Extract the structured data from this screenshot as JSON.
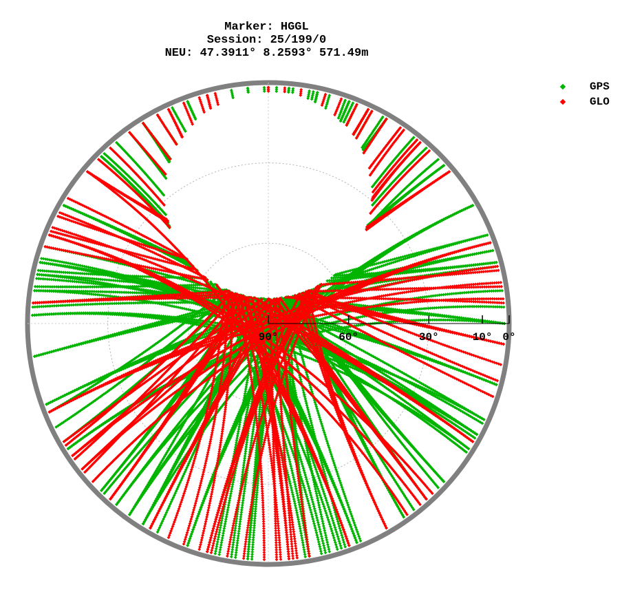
{
  "chart_data": {
    "type": "scatter",
    "projection": "polar-skyplot",
    "title_lines": [
      "Marker: HGGL",
      "Session: 25/199/0",
      "NEU: 47.3911° 8.2593° 571.49m"
    ],
    "elevation_ticks": [
      {
        "elevation": 90,
        "label": "90°"
      },
      {
        "elevation": 60,
        "label": "60°"
      },
      {
        "elevation": 30,
        "label": "30°"
      },
      {
        "elevation": 10,
        "label": "10°"
      },
      {
        "elevation": 0,
        "label": "0°"
      }
    ],
    "rlim": [
      90,
      0
    ],
    "grid": true,
    "legend_position": "top-right",
    "north_hole_azimuth_deg": 0,
    "north_hole_elevation_deg": 42,
    "series": [
      {
        "name": "GPS",
        "color": "#00b400",
        "tracks": [
          {
            "start_az": 300,
            "az_offset": -6
          },
          {
            "start_az": 328,
            "az_offset": 14
          },
          {
            "start_az": 355,
            "az_offset": -18
          },
          {
            "start_az": 20,
            "az_offset": 8
          },
          {
            "start_az": 48,
            "az_offset": -12
          },
          {
            "start_az": 75,
            "az_offset": 20
          },
          {
            "start_az": 105,
            "az_offset": -4
          },
          {
            "start_az": 132,
            "az_offset": 16
          },
          {
            "start_az": 158,
            "az_offset": -22
          },
          {
            "start_az": 185,
            "az_offset": 6
          },
          {
            "start_az": 212,
            "az_offset": -10
          },
          {
            "start_az": 238,
            "az_offset": 24
          },
          {
            "start_az": 262,
            "az_offset": -14
          },
          {
            "start_az": 285,
            "az_offset": 10
          },
          {
            "start_az": 315,
            "az_offset": 28
          },
          {
            "start_az": 340,
            "az_offset": -26
          },
          {
            "start_az": 30,
            "az_offset": 30
          },
          {
            "start_az": 60,
            "az_offset": -28
          },
          {
            "start_az": 90,
            "az_offset": 4
          },
          {
            "start_az": 118,
            "az_offset": -20
          },
          {
            "start_az": 145,
            "az_offset": 26
          },
          {
            "start_az": 200,
            "az_offset": 18
          },
          {
            "start_az": 250,
            "az_offset": -2
          },
          {
            "start_az": 5,
            "az_offset": 0
          },
          {
            "start_az": 170,
            "az_offset": 12
          },
          {
            "start_az": 225,
            "az_offset": -24
          },
          {
            "start_az": 272,
            "az_offset": 22
          },
          {
            "start_az": 12,
            "az_offset": -8
          }
        ]
      },
      {
        "name": "GLO",
        "color": "#ff0000",
        "tracks": [
          {
            "start_az": 310,
            "az_offset": -30
          },
          {
            "start_az": 335,
            "az_offset": 18
          },
          {
            "start_az": 0,
            "az_offset": -10
          },
          {
            "start_az": 25,
            "az_offset": 26
          },
          {
            "start_az": 50,
            "az_offset": 2
          },
          {
            "start_az": 70,
            "az_offset": -22
          },
          {
            "start_az": 95,
            "az_offset": 14
          },
          {
            "start_az": 120,
            "az_offset": -6
          },
          {
            "start_az": 150,
            "az_offset": 30
          },
          {
            "start_az": 175,
            "az_offset": -16
          },
          {
            "start_az": 195,
            "az_offset": 20
          },
          {
            "start_az": 222,
            "az_offset": -28
          },
          {
            "start_az": 248,
            "az_offset": 8
          },
          {
            "start_az": 275,
            "az_offset": -18
          },
          {
            "start_az": 292,
            "az_offset": 24
          },
          {
            "start_az": 345,
            "az_offset": 32
          },
          {
            "start_az": 40,
            "az_offset": -34
          },
          {
            "start_az": 138,
            "az_offset": 6
          },
          {
            "start_az": 210,
            "az_offset": -4
          },
          {
            "start_az": 160,
            "az_offset": -30
          }
        ]
      }
    ]
  }
}
